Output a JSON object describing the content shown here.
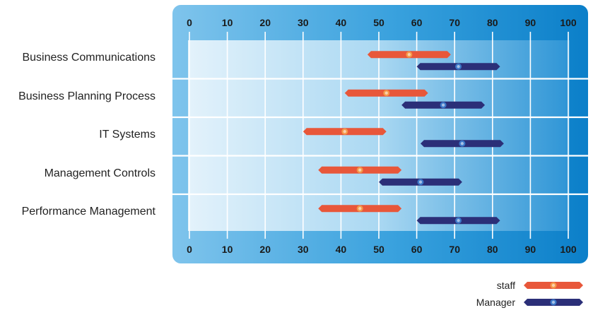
{
  "chart_data": {
    "type": "range-bar",
    "xlim": [
      0,
      100
    ],
    "xticks": [
      0,
      10,
      20,
      30,
      40,
      50,
      60,
      70,
      80,
      90,
      100
    ],
    "grid": true,
    "legend_position": "bottom-right",
    "categories": [
      "Business Communications",
      "Business Planning Process",
      "IT Systems",
      "Management Controls",
      "Performance Management"
    ],
    "series": [
      {
        "name": "staff",
        "color": "#e8573a",
        "ranges": [
          [
            47,
            69
          ],
          [
            41,
            63
          ],
          [
            30,
            52
          ],
          [
            34,
            56
          ],
          [
            34,
            56
          ]
        ],
        "markers": [
          58,
          52,
          41,
          45,
          45
        ]
      },
      {
        "name": "Manager",
        "color": "#2b2f78",
        "ranges": [
          [
            60,
            82
          ],
          [
            56,
            78
          ],
          [
            61,
            83
          ],
          [
            50,
            72
          ],
          [
            60,
            82
          ]
        ],
        "markers": [
          71,
          67,
          72,
          61,
          71
        ]
      }
    ]
  }
}
